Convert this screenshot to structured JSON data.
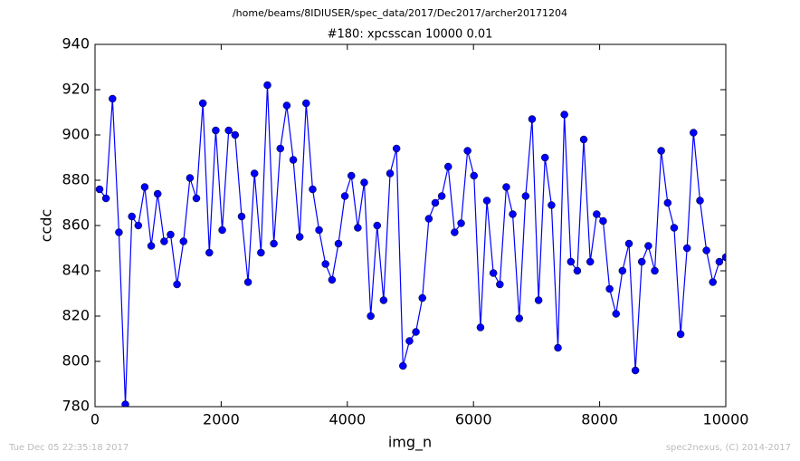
{
  "header": "/home/beams/8IDIUSER/spec_data/2017/Dec2017/archer20171204",
  "chart_data": {
    "type": "line",
    "title": "#180: xpcsscan 10000 0.01",
    "x_label": "img_n",
    "y_label": "ccdc",
    "x": [
      72,
      174,
      277,
      379,
      481,
      584,
      686,
      788,
      891,
      993,
      1096,
      1198,
      1300,
      1403,
      1505,
      1607,
      1710,
      1812,
      1914,
      2017,
      2119,
      2221,
      2324,
      2426,
      2528,
      2631,
      2733,
      2835,
      2938,
      3040,
      3143,
      3245,
      3347,
      3450,
      3552,
      3654,
      3757,
      3859,
      3961,
      4064,
      4166,
      4268,
      4371,
      4473,
      4575,
      4678,
      4780,
      4882,
      4985,
      5087,
      5190,
      5292,
      5394,
      5497,
      5599,
      5701,
      5804,
      5906,
      6008,
      6111,
      6213,
      6315,
      6418,
      6520,
      6622,
      6725,
      6827,
      6929,
      7032,
      7134,
      7237,
      7339,
      7441,
      7544,
      7646,
      7748,
      7851,
      7953,
      8055,
      8158,
      8260,
      8362,
      8465,
      8567,
      8669,
      8772,
      8874,
      8976,
      9079,
      9181,
      9284,
      9386,
      9488,
      9591,
      9693,
      9795,
      9898,
      10000
    ],
    "series": [
      {
        "color": "#0000ff",
        "values": [
          876,
          872,
          916,
          857,
          781,
          864,
          860,
          877,
          851,
          874,
          853,
          856,
          834,
          853,
          881,
          872,
          914,
          848,
          902,
          858,
          902,
          900,
          864,
          835,
          883,
          848,
          922,
          852,
          894,
          913,
          889,
          855,
          914,
          876,
          858,
          843,
          836,
          852,
          873,
          882,
          859,
          879,
          820,
          860,
          827,
          883,
          894,
          798,
          809,
          813,
          828,
          863,
          870,
          873,
          886,
          857,
          861,
          893,
          882,
          815,
          871,
          839,
          834,
          877,
          865,
          819,
          873,
          907,
          827,
          890,
          869,
          806,
          909,
          844,
          840,
          898,
          844,
          865,
          862,
          832,
          821,
          840,
          852,
          796,
          844,
          851,
          840,
          893,
          870,
          859,
          812,
          850,
          901,
          871,
          849,
          835,
          844,
          846
        ]
      }
    ],
    "xlim": [
      0,
      10000
    ],
    "xticks": [
      0,
      2000,
      4000,
      6000,
      8000,
      10000
    ],
    "ylim": [
      780,
      940
    ],
    "yticks": [
      780,
      800,
      820,
      840,
      860,
      880,
      900,
      920,
      940
    ]
  },
  "footer": {
    "timestamp": "Tue Dec 05 22:35:18 2017",
    "credit": "spec2nexus, (C) 2014-2017"
  }
}
